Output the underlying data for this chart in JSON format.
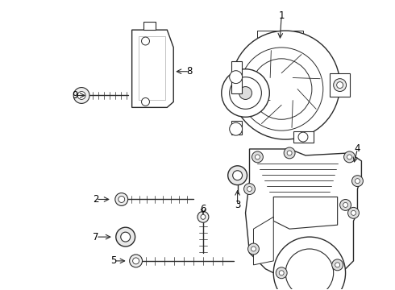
{
  "background_color": "#ffffff",
  "line_color": "#2a2a2a",
  "label_color": "#000000",
  "lw": 1.0,
  "fig_width": 4.9,
  "fig_height": 3.6,
  "dpi": 100
}
